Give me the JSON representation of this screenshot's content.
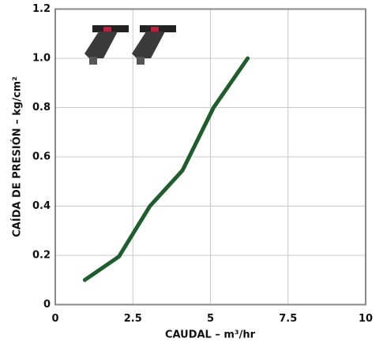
{
  "chart_data": {
    "type": "line",
    "x_label": "CAUDAL – m³/hr",
    "y_label": "CAÍDA DE PRESIÓN – kg/cm²",
    "x": [
      0.95,
      2.05,
      3.05,
      4.1,
      5.1,
      6.2
    ],
    "values": [
      0.1,
      0.195,
      0.4,
      0.545,
      0.8,
      1.0
    ],
    "color": "#1d5e2c",
    "xlim": [
      0,
      10
    ],
    "xticks": [
      0,
      2.5,
      5,
      7.5,
      10
    ],
    "ylim": [
      0,
      1.2
    ],
    "yticks": [
      0,
      0.2,
      0.4,
      0.6,
      0.8,
      {
        "value": 1,
        "label": "1.0"
      },
      1.2
    ],
    "grid": true
  }
}
